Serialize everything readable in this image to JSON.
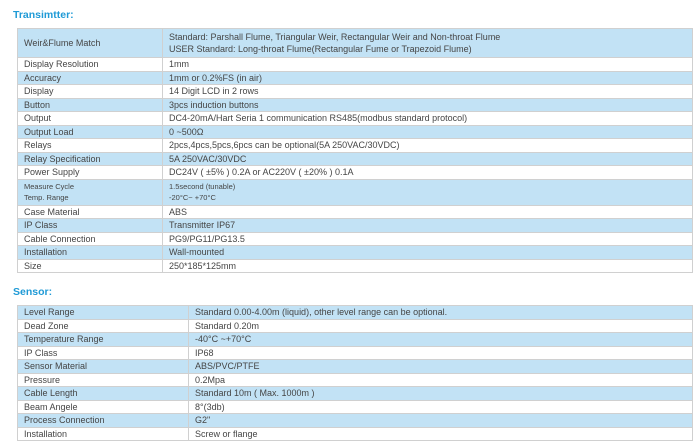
{
  "transmitter": {
    "title": "Transimtter:",
    "rows": [
      {
        "label": "Weir&Flume Match",
        "value_line1": "Standard: Parshall Flume, Triangular Weir, Rectangular Weir and Non-throat Flume",
        "value_line2": "USER Standard: Long-throat Flume(Rectangular Fume or Trapezoid Flume)"
      },
      {
        "label": "Display Resolution",
        "value": "1mm"
      },
      {
        "label": "Accuracy",
        "value": "1mm or 0.2%FS (in air)"
      },
      {
        "label": "Display",
        "value": "14 Digit LCD in 2 rows"
      },
      {
        "label": "Button",
        "value": "3pcs induction buttons"
      },
      {
        "label": "Output",
        "value": "DC4-20mA/Hart Seria 1 communication RS485(modbus standard protocol)"
      },
      {
        "label": "Output Load",
        "value": "0 ~500Ω"
      },
      {
        "label": "Relays",
        "value": "2pcs,4pcs,5pcs,6pcs can be optional(5A 250VAC/30VDC)"
      },
      {
        "label": "Relay Specification",
        "value": "5A 250VAC/30VDC"
      },
      {
        "label": "Power Supply",
        "value": "DC24V ( ±5% ) 0.2A or AC220V ( ±20% ) 0.1A"
      },
      {
        "label_line1": "Measure Cycle",
        "label_line2": "Temp. Range",
        "value_line1": "1.5second (tunable)",
        "value_line2": "-20°C~ +70°C"
      },
      {
        "label": "Case Material",
        "value": "ABS"
      },
      {
        "label": "IP Class",
        "value": "Transmitter IP67"
      },
      {
        "label": "Cable Connection",
        "value": "PG9/PG11/PG13.5"
      },
      {
        "label": "Installation",
        "value": "Wall-mounted"
      },
      {
        "label": "Size",
        "value": "250*185*125mm"
      }
    ]
  },
  "sensor": {
    "title": "Sensor:",
    "rows": [
      {
        "label": "Level Range",
        "value": "Standard 0.00-4.00m (liquid), other level range can be optional."
      },
      {
        "label": "Dead Zone",
        "value": "Standard 0.20m"
      },
      {
        "label": "Temperature Range",
        "value": "-40°C ~+70°C"
      },
      {
        "label": "IP Class",
        "value": "IP68"
      },
      {
        "label": "Sensor Material",
        "value": "ABS/PVC/PTFE"
      },
      {
        "label": "Pressure",
        "value": "0.2Mpa"
      },
      {
        "label": "Cable Length",
        "value": "Standard 10m ( Max. 1000m )"
      },
      {
        "label": "Beam Angele",
        "value": "8°(3db)"
      },
      {
        "label": "Process Connection",
        "value": "G2\""
      },
      {
        "label": "Installation",
        "value": "Screw or flange"
      }
    ]
  },
  "colors": {
    "heading_blue": "#1f9ad6",
    "row_blue": "#c2e2f5",
    "border_gray": "#d0d0d0",
    "text_gray": "#454545"
  }
}
